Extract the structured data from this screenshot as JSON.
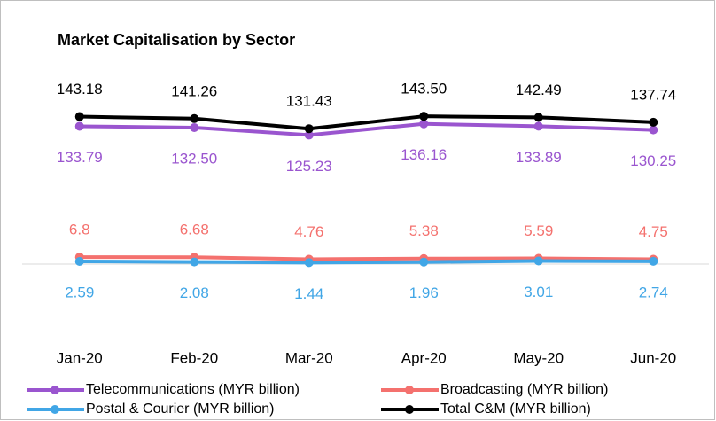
{
  "chart_data": {
    "type": "line",
    "title": "Market Capitalisation by Sector",
    "categories": [
      "Jan-20",
      "Feb-20",
      "Mar-20",
      "Apr-20",
      "May-20",
      "Jun-20"
    ],
    "ylim": [
      0,
      160
    ],
    "legend": "bottom",
    "series": [
      {
        "name": "Telecommunications (MYR billion)",
        "color": "#9a55cf",
        "label_side": "below",
        "values": [
          133.79,
          132.5,
          125.23,
          136.16,
          133.89,
          130.25
        ],
        "value_labels": [
          "133.79",
          "132.50",
          "125.23",
          "136.16",
          "133.89",
          "130.25"
        ]
      },
      {
        "name": "Broadcasting (MYR billion)",
        "color": "#f4716e",
        "label_side": "above",
        "values": [
          6.8,
          6.68,
          4.76,
          5.38,
          5.59,
          4.75
        ],
        "value_labels": [
          "6.8",
          "6.68",
          "4.76",
          "5.38",
          "5.59",
          "4.75"
        ]
      },
      {
        "name": "Postal & Courier (MYR billion)",
        "color": "#41a6e6",
        "label_side": "below",
        "values": [
          2.59,
          2.08,
          1.44,
          1.96,
          3.01,
          2.74
        ],
        "value_labels": [
          "2.59",
          "2.08",
          "1.44",
          "1.96",
          "3.01",
          "2.74"
        ]
      },
      {
        "name": "Total C&M (MYR billion)",
        "color": "#000000",
        "label_side": "above",
        "values": [
          143.18,
          141.26,
          131.43,
          143.5,
          142.49,
          137.74
        ],
        "value_labels": [
          "143.18",
          "141.26",
          "131.43",
          "143.50",
          "142.49",
          "137.74"
        ]
      }
    ]
  }
}
